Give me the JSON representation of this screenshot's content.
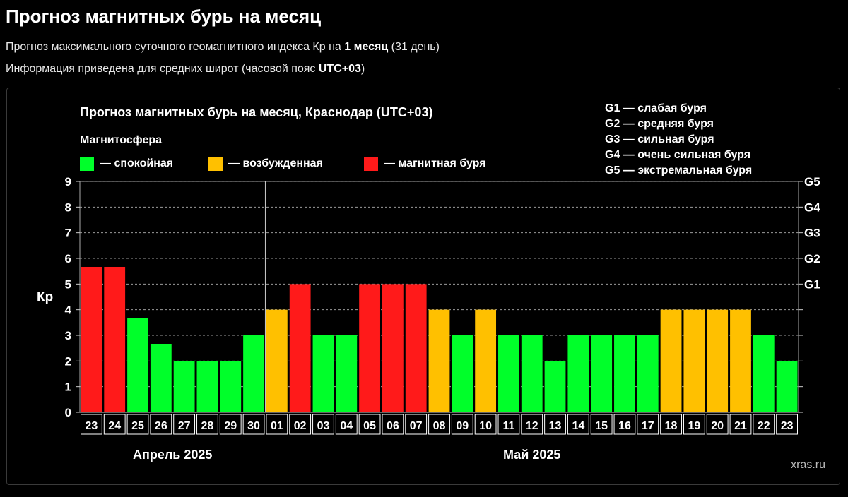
{
  "header": {
    "title": "Прогноз магнитных бурь на месяц",
    "line1_prefix": "Прогноз максимального суточного геомагнитного индекса Кр на ",
    "line1_bold": "1 месяц",
    "line1_suffix": " (31 день)",
    "line2_prefix": "Информация приведена для средних широт (часовой пояс ",
    "line2_bold": "UTC+03",
    "line2_suffix": ")"
  },
  "legend": {
    "heading": "Магнитосфера",
    "items": [
      {
        "label": "— спокойная",
        "color": "#00ff2a"
      },
      {
        "label": "— возбужденная",
        "color": "#ffc000"
      },
      {
        "label": "— магнитная буря",
        "color": "#ff1a1a"
      }
    ]
  },
  "g_legend": [
    "G1 — слабая буря",
    "G2 — средняя буря",
    "G3 — сильная буря",
    "G4 — очень сильная буря",
    "G5 — экстремальная буря"
  ],
  "watermark": "xras.ru",
  "chart_data": {
    "type": "bar",
    "title": "Прогноз магнитных бурь на месяц, Краснодар (UTC+03)",
    "ylabel": "Кр",
    "ylim": [
      0,
      9
    ],
    "yticks": [
      "0",
      "1",
      "2",
      "3",
      "4",
      "5",
      "6",
      "7",
      "8",
      "9"
    ],
    "right_ticks": [
      {
        "value": 5,
        "label": "G1"
      },
      {
        "value": 6,
        "label": "G2"
      },
      {
        "value": 7,
        "label": "G3"
      },
      {
        "value": 8,
        "label": "G4"
      },
      {
        "value": 9,
        "label": "G5"
      }
    ],
    "categories": [
      "23",
      "24",
      "25",
      "26",
      "27",
      "28",
      "29",
      "30",
      "01",
      "02",
      "03",
      "04",
      "05",
      "06",
      "07",
      "08",
      "09",
      "10",
      "11",
      "12",
      "13",
      "14",
      "15",
      "16",
      "17",
      "18",
      "19",
      "20",
      "21",
      "22",
      "23"
    ],
    "values": [
      5.67,
      5.67,
      3.67,
      2.67,
      2,
      2,
      2,
      3,
      4,
      5,
      3,
      3,
      5,
      5,
      5,
      4,
      3,
      4,
      3,
      3,
      2,
      3,
      3,
      3,
      3,
      4,
      4,
      4,
      4,
      3,
      2
    ],
    "levels": [
      "storm",
      "storm",
      "quiet",
      "quiet",
      "quiet",
      "quiet",
      "quiet",
      "quiet",
      "active",
      "storm",
      "quiet",
      "quiet",
      "storm",
      "storm",
      "storm",
      "active",
      "quiet",
      "active",
      "quiet",
      "quiet",
      "quiet",
      "quiet",
      "quiet",
      "quiet",
      "quiet",
      "active",
      "active",
      "active",
      "active",
      "quiet",
      "quiet"
    ],
    "level_colors": {
      "quiet": "#00ff2a",
      "active": "#ffc000",
      "storm": "#ff1a1a"
    },
    "months": [
      {
        "label": "Апрель 2025",
        "start": 0,
        "end": 7
      },
      {
        "label": "Май 2025",
        "start": 8,
        "end": 30
      }
    ],
    "grid": "dashed-horizontal"
  }
}
